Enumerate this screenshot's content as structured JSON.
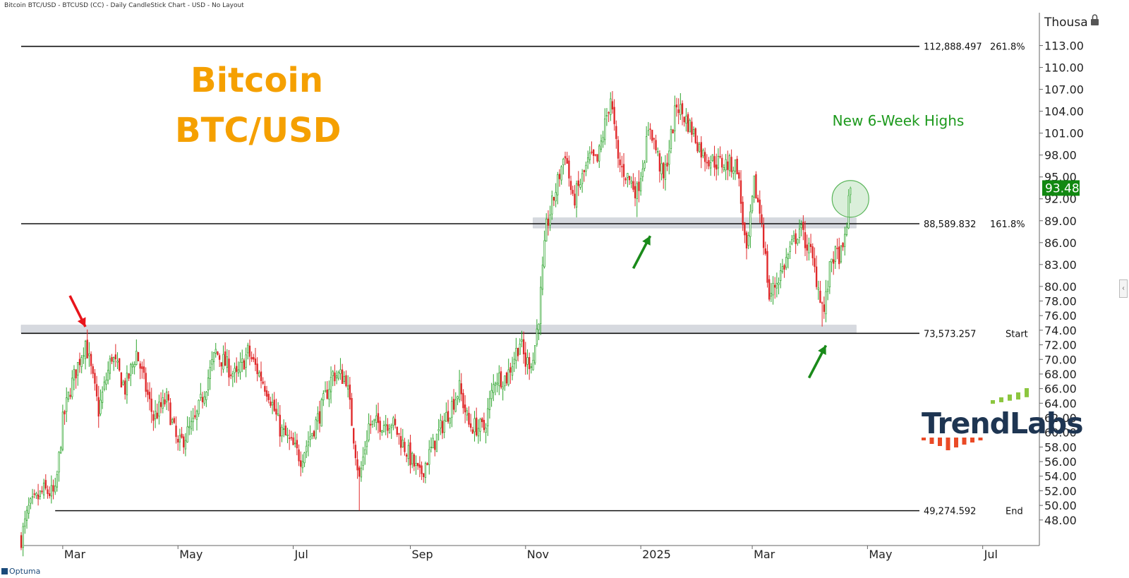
{
  "header": {
    "text": "Bitcoin BTC/USD - BTCUSD (CC) - Daily CandleStick Chart - USD - No Layout"
  },
  "title": {
    "line1": "Bitcoin",
    "line2": "BTC/USD"
  },
  "annotation": {
    "new_highs": "New 6-Week Highs"
  },
  "brand": {
    "platform": "Optuma",
    "watermark": "TrendLabs"
  },
  "colors": {
    "up": "#2ea52e",
    "down": "#e0282a",
    "title": "#f5a000",
    "annotation": "#1e9a1e",
    "last_price_bg": "#118811"
  },
  "axis": {
    "unit_label": "Thousa"
  },
  "chart_data": {
    "type": "candlestick",
    "symbol": "BTCUSD",
    "unit": "USD (thousands)",
    "ylim": [
      44.5,
      117.5
    ],
    "y_ticks": [
      "113.00",
      "110.00",
      "107.00",
      "104.00",
      "101.00",
      "98.00",
      "95.00",
      "92.00",
      "89.00",
      "86.00",
      "83.00",
      "80.00",
      "78.00",
      "76.00",
      "74.00",
      "72.00",
      "70.00",
      "68.00",
      "66.00",
      "64.00",
      "62.00",
      "60.00",
      "58.00",
      "56.00",
      "54.00",
      "52.00",
      "50.00",
      "48.00"
    ],
    "x_range": [
      "2024-02-08",
      "2025-07-31"
    ],
    "x_ticks": [
      {
        "label": "Mar",
        "date": "2024-03-01"
      },
      {
        "label": "May",
        "date": "2024-05-01"
      },
      {
        "label": "Jul",
        "date": "2024-07-01"
      },
      {
        "label": "Sep",
        "date": "2024-09-01"
      },
      {
        "label": "Nov",
        "date": "2024-11-01"
      },
      {
        "label": "2025",
        "date": "2025-01-01"
      },
      {
        "label": "Mar",
        "date": "2025-03-01"
      },
      {
        "label": "May",
        "date": "2025-05-01"
      },
      {
        "label": "Jul",
        "date": "2025-07-01"
      }
    ],
    "path": [
      [
        "2024-02-08",
        45.5
      ],
      [
        "2024-02-12",
        49.5
      ],
      [
        "2024-02-20",
        52.0
      ],
      [
        "2024-02-26",
        51.5
      ],
      [
        "2024-03-01",
        61.5
      ],
      [
        "2024-03-05",
        66.0
      ],
      [
        "2024-03-13",
        72.5
      ],
      [
        "2024-03-20",
        63.0
      ],
      [
        "2024-03-27",
        70.5
      ],
      [
        "2024-04-03",
        66.0
      ],
      [
        "2024-04-09",
        71.0
      ],
      [
        "2024-04-18",
        62.0
      ],
      [
        "2024-04-25",
        64.5
      ],
      [
        "2024-05-01",
        58.0
      ],
      [
        "2024-05-10",
        61.5
      ],
      [
        "2024-05-21",
        71.0
      ],
      [
        "2024-06-01",
        67.5
      ],
      [
        "2024-06-07",
        71.0
      ],
      [
        "2024-06-18",
        65.5
      ],
      [
        "2024-06-24",
        60.5
      ],
      [
        "2024-07-05",
        56.5
      ],
      [
        "2024-07-15",
        62.5
      ],
      [
        "2024-07-22",
        68.0
      ],
      [
        "2024-07-29",
        67.5
      ],
      [
        "2024-08-05",
        53.5
      ],
      [
        "2024-08-10",
        61.0
      ],
      [
        "2024-08-22",
        61.5
      ],
      [
        "2024-08-30",
        57.5
      ],
      [
        "2024-09-06",
        54.0
      ],
      [
        "2024-09-17",
        60.5
      ],
      [
        "2024-09-27",
        66.0
      ],
      [
        "2024-10-02",
        61.0
      ],
      [
        "2024-10-10",
        60.5
      ],
      [
        "2024-10-16",
        67.5
      ],
      [
        "2024-10-22",
        67.5
      ],
      [
        "2024-10-29",
        72.5
      ],
      [
        "2024-11-01",
        69.5
      ],
      [
        "2024-11-05",
        70.0
      ],
      [
        "2024-11-08",
        76.0
      ],
      [
        "2024-11-12",
        88.0
      ],
      [
        "2024-11-22",
        98.5
      ],
      [
        "2024-11-26",
        91.5
      ],
      [
        "2024-12-05",
        97.5
      ],
      [
        "2024-12-09",
        97.0
      ],
      [
        "2024-12-16",
        106.0
      ],
      [
        "2024-12-20",
        97.0
      ],
      [
        "2024-12-30",
        93.0
      ],
      [
        "2025-01-06",
        102.0
      ],
      [
        "2025-01-13",
        94.5
      ],
      [
        "2025-01-20",
        105.0
      ],
      [
        "2025-01-28",
        101.5
      ],
      [
        "2025-02-03",
        98.0
      ],
      [
        "2025-02-10",
        97.0
      ],
      [
        "2025-02-21",
        96.5
      ],
      [
        "2025-02-26",
        84.0
      ],
      [
        "2025-03-02",
        94.0
      ],
      [
        "2025-03-06",
        89.0
      ],
      [
        "2025-03-10",
        78.5
      ],
      [
        "2025-03-18",
        83.0
      ],
      [
        "2025-03-26",
        88.0
      ],
      [
        "2025-04-01",
        84.5
      ],
      [
        "2025-04-08",
        76.5
      ],
      [
        "2025-04-12",
        84.0
      ],
      [
        "2025-04-18",
        84.5
      ],
      [
        "2025-04-22",
        93.48
      ]
    ],
    "last_price": "93.48",
    "horizontal_levels": [
      {
        "value": 112.888497,
        "label": "112,888.497",
        "tag": "261.8%",
        "from": "2024-02-08"
      },
      {
        "value": 88.589832,
        "label": "88,589.832",
        "tag": "161.8%",
        "from": "2024-02-08"
      },
      {
        "value": 73.573257,
        "label": "73,573.257",
        "tag": "Start",
        "from": "2024-02-08"
      },
      {
        "value": 49.274592,
        "label": "49,274.592",
        "tag": "End",
        "from": "2024-02-26"
      }
    ],
    "zones": [
      {
        "from": "2024-11-05",
        "to": "2025-04-25",
        "low": 88.0,
        "high": 89.4
      },
      {
        "from": "2024-02-08",
        "to": "2025-04-25",
        "low": 73.6,
        "high": 74.7
      }
    ],
    "arrows": [
      {
        "color": "red",
        "date": "2024-03-13",
        "value": 73.7,
        "direction": "down"
      },
      {
        "color": "green",
        "date": "2025-01-06",
        "value": 87.5,
        "direction": "up"
      },
      {
        "color": "green",
        "date": "2025-04-09",
        "value": 72.5,
        "direction": "up"
      }
    ],
    "highlight_circle": {
      "date": "2025-04-22",
      "value": 92.0
    }
  }
}
